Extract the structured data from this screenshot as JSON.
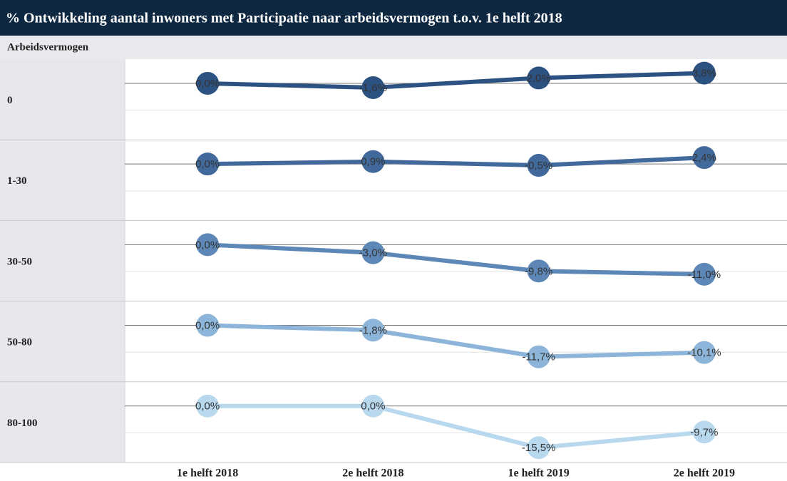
{
  "chart_data": {
    "type": "line",
    "title": "% Ontwikkeling aantal inwoners met Participatie naar arbeidsvermogen t.o.v. 1e helft 2018",
    "row_header": "Arbeidsvermogen",
    "categories": [
      "1e helft 2018",
      "2e helft 2018",
      "1e helft 2019",
      "2e helft 2019"
    ],
    "ylim": [
      -21,
      9
    ],
    "yticks": [
      0,
      -10
    ],
    "grid": true,
    "series": [
      {
        "name": "0",
        "color": "#2c5282",
        "values": [
          0,
          -1.6,
          2.0,
          3.8
        ],
        "value_labels": [
          "0,0%",
          "-1,6%",
          "2,0%",
          "3,8%"
        ]
      },
      {
        "name": "1-30",
        "color": "#41699b",
        "values": [
          0,
          0.9,
          -0.5,
          2.4
        ],
        "value_labels": [
          "0,0%",
          "0,9%",
          "-0,5%",
          "2,4%"
        ]
      },
      {
        "name": "30-50",
        "color": "#5d87b6",
        "values": [
          0,
          -3.0,
          -9.8,
          -11.0
        ],
        "value_labels": [
          "0,0%",
          "-3,0%",
          "-9,8%",
          "-11,0%"
        ]
      },
      {
        "name": "50-80",
        "color": "#8cb5d9",
        "values": [
          0,
          -1.8,
          -11.7,
          -10.1
        ],
        "value_labels": [
          "0,0%",
          "-1,8%",
          "-11,7%",
          "-10,1%"
        ]
      },
      {
        "name": "80-100",
        "color": "#b8d8ee",
        "values": [
          0,
          0.0,
          -15.5,
          -9.7
        ],
        "value_labels": [
          "0,0%",
          "0,0%",
          "-15,5%",
          "-9,7%"
        ]
      }
    ]
  }
}
